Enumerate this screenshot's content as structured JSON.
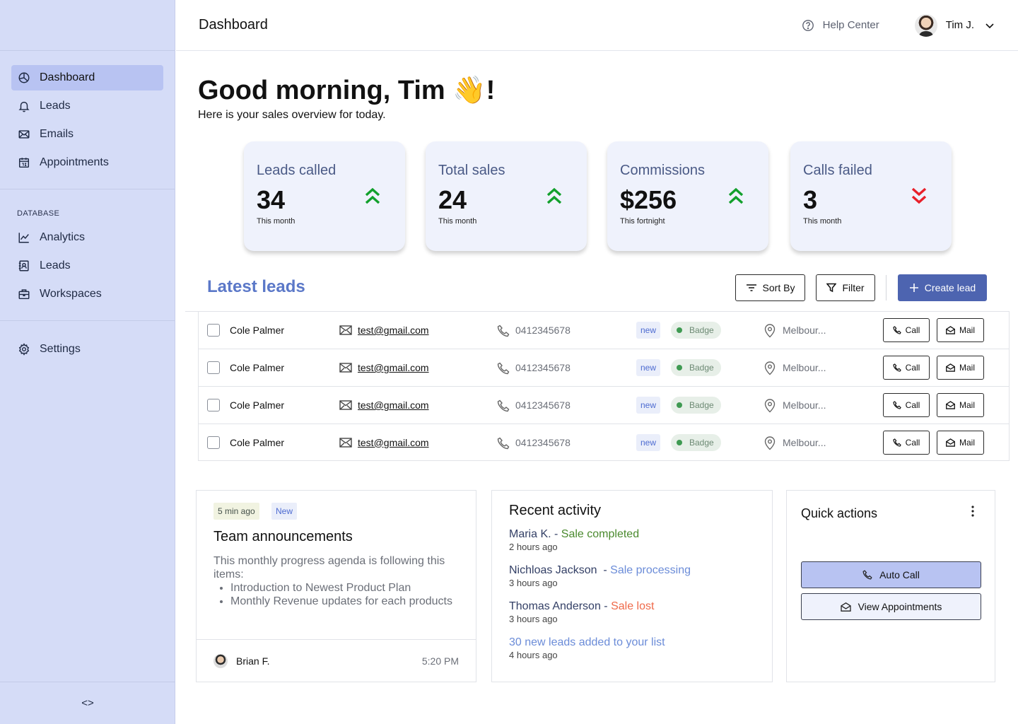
{
  "sidebar": {
    "main_items": [
      {
        "label": "Dashboard",
        "icon": "pie-chart-icon",
        "active": true
      },
      {
        "label": "Leads",
        "icon": "bell-icon"
      },
      {
        "label": "Emails",
        "icon": "mail-icon"
      },
      {
        "label": "Appointments",
        "icon": "calendar-icon"
      }
    ],
    "database_heading": "DATABASE",
    "database_items": [
      {
        "label": "Analytics",
        "icon": "line-chart-icon"
      },
      {
        "label": "Leads",
        "icon": "contact-book-icon"
      },
      {
        "label": "Workspaces",
        "icon": "briefcase-icon"
      }
    ],
    "settings_label": "Settings",
    "collapse_glyph": "<>"
  },
  "topbar": {
    "title": "Dashboard",
    "help_label": "Help Center",
    "user_name": "Tim J."
  },
  "greeting": {
    "title": "Good morning, Tim 👋!",
    "subtitle": "Here is your sales overview for today."
  },
  "stats": [
    {
      "label": "Leads called",
      "value": "34",
      "period": "This month",
      "trend": "up"
    },
    {
      "label": "Total sales",
      "value": "24",
      "period": "This month",
      "trend": "up"
    },
    {
      "label": "Commissions",
      "value": "$256",
      "period": "This fortnight",
      "trend": "up"
    },
    {
      "label": "Calls failed",
      "value": "3",
      "period": "This month",
      "trend": "down"
    }
  ],
  "colors": {
    "trend_up": "#12a02c",
    "trend_down": "#e8202a",
    "primary": "#4d64b0",
    "sidebar_bg": "#d5dcf7"
  },
  "leads": {
    "title": "Latest leads",
    "sort_label": "Sort By",
    "filter_label": "Filter",
    "create_label": "Create lead",
    "rows": [
      {
        "name": "Cole Palmer",
        "email": "test@gmail.com",
        "phone": "0412345678",
        "tag": "new",
        "badge": "Badge",
        "location": "Melbour...",
        "call_label": "Call",
        "mail_label": "Mail"
      },
      {
        "name": "Cole Palmer",
        "email": "test@gmail.com",
        "phone": "0412345678",
        "tag": "new",
        "badge": "Badge",
        "location": "Melbour...",
        "call_label": "Call",
        "mail_label": "Mail"
      },
      {
        "name": "Cole Palmer",
        "email": "test@gmail.com",
        "phone": "0412345678",
        "tag": "new",
        "badge": "Badge",
        "location": "Melbour...",
        "call_label": "Call",
        "mail_label": "Mail"
      },
      {
        "name": "Cole Palmer",
        "email": "test@gmail.com",
        "phone": "0412345678",
        "tag": "new",
        "badge": "Badge",
        "location": "Melbour...",
        "call_label": "Call",
        "mail_label": "Mail"
      }
    ]
  },
  "announcement": {
    "time_chip": "5 min ago",
    "new_chip": "New",
    "title": "Team announcements",
    "intro": "This monthly progress agenda is following this items:",
    "bullets": [
      "Introduction to Newest Product Plan",
      "Monthly Revenue updates for each products"
    ],
    "author": "Brian F.",
    "time": "5:20 PM"
  },
  "activity": {
    "title": "Recent activity",
    "items": [
      {
        "who": "Maria K. - ",
        "status": "Sale completed",
        "when": "2 hours ago"
      },
      {
        "who": "Nichloas Jackson  - ",
        "status": "Sale processing",
        "when": "3 hours ago"
      },
      {
        "who": "Thomas Anderson - ",
        "status": "Sale lost",
        "when": "3 hours ago"
      },
      {
        "who": "",
        "status": "30 new leads added to your list",
        "when": "4 hours ago"
      }
    ]
  },
  "quick_actions": {
    "title": "Quick actions",
    "auto_call_label": "Auto Call",
    "view_appointments_label": "View Appointments"
  }
}
